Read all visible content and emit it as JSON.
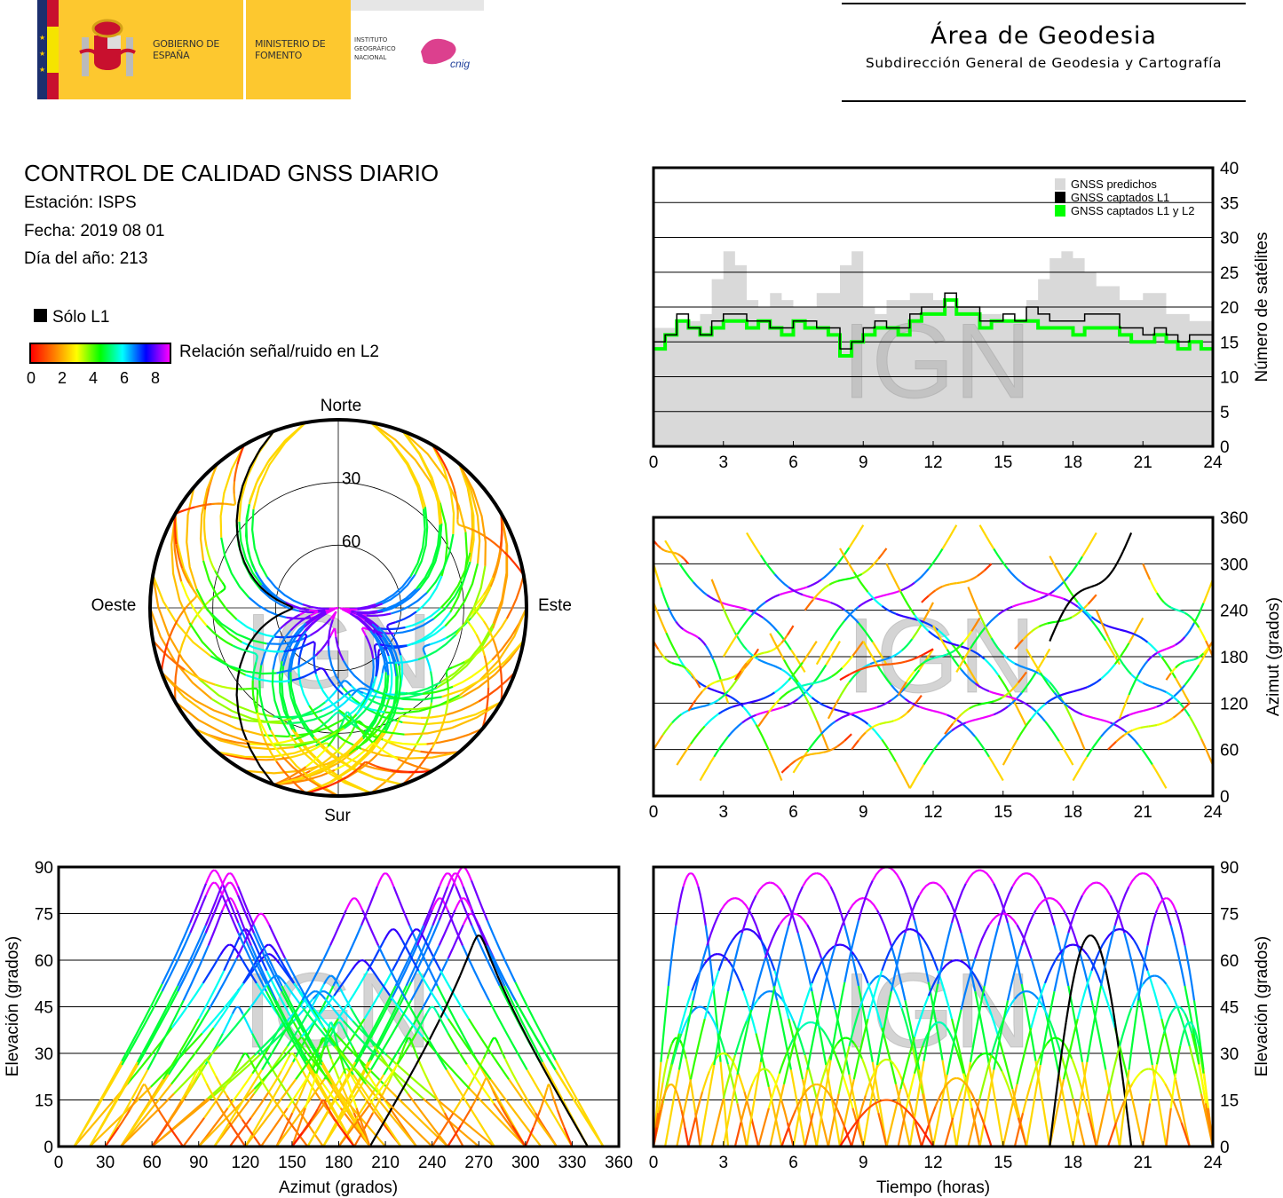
{
  "header": {
    "logo": {
      "gobierno": "GOBIERNO DE ESPAÑA",
      "ministerio": "MINISTERIO DE FOMENTO",
      "instituto": "INSTITUTO GEOGRÁFICO NACIONAL",
      "cnig": "cnig"
    },
    "area_title": "Área de Geodesia",
    "area_subtitle": "Subdirección General de Geodesia y Cartografía"
  },
  "info": {
    "title": "CONTROL DE CALIDAD GNSS DIARIO",
    "station": "Estación: ISPS",
    "date": "Fecha: 2019 08 01",
    "doy": "Día del año: 213"
  },
  "legend": {
    "solo_l1": "Sólo L1",
    "colorbar_label": "Relación señal/ruido en L2",
    "colorbar_ticks": [
      "0",
      "2",
      "4",
      "6",
      "8"
    ],
    "colors": {
      "solo_l1": "#000000",
      "predicted": "#d9d9d9",
      "l1": "#000000",
      "l1l2": "#00ff00"
    }
  },
  "watermark": "IGN",
  "chart_data": [
    {
      "id": "satellite-count",
      "type": "line",
      "title": "",
      "xlabel": "",
      "ylabel": "Número de satélites",
      "xlim": [
        0,
        24
      ],
      "ylim": [
        0,
        40
      ],
      "xticks": [
        "0",
        "3",
        "6",
        "9",
        "12",
        "15",
        "18",
        "21",
        "24"
      ],
      "yticks": [
        "0",
        "5",
        "10",
        "15",
        "20",
        "25",
        "30",
        "35",
        "40"
      ],
      "grid": true,
      "legend_position": "top-right",
      "x_step_hours": 0.5,
      "series": [
        {
          "name": "GNSS predichos",
          "style": "area",
          "values": [
            17,
            17,
            18,
            18,
            19,
            24,
            28,
            26,
            21,
            20,
            22,
            21,
            20,
            20,
            22,
            22,
            26,
            28,
            20,
            19,
            21,
            21,
            22,
            22,
            21,
            20,
            20,
            20,
            19,
            19,
            18,
            18,
            21,
            24,
            27,
            28,
            27,
            25,
            23,
            23,
            21,
            21,
            22,
            22,
            19,
            19,
            18,
            18
          ]
        },
        {
          "name": "GNSS captados L1",
          "style": "step",
          "values": [
            15,
            16,
            19,
            17,
            16,
            18,
            19,
            19,
            18,
            18,
            17,
            17,
            18,
            18,
            17,
            17,
            14,
            15,
            17,
            18,
            17,
            17,
            19,
            20,
            20,
            22,
            20,
            20,
            18,
            18,
            19,
            18,
            20,
            19,
            18,
            18,
            18,
            19,
            19,
            19,
            17,
            17,
            16,
            17,
            16,
            15,
            16,
            16
          ]
        },
        {
          "name": "GNSS captados L1 y L2",
          "style": "step",
          "values": [
            14,
            16,
            18,
            17,
            16,
            17,
            18,
            18,
            17,
            18,
            17,
            16,
            18,
            17,
            17,
            16,
            13,
            15,
            16,
            17,
            17,
            16,
            18,
            19,
            19,
            21,
            19,
            19,
            17,
            18,
            18,
            18,
            18,
            17,
            17,
            17,
            16,
            17,
            17,
            17,
            16,
            15,
            15,
            16,
            15,
            14,
            15,
            14
          ]
        }
      ]
    },
    {
      "id": "azimuth-vs-time",
      "type": "scatter",
      "xlabel": "",
      "ylabel": "Azimut (grados)",
      "xlim": [
        0,
        24
      ],
      "ylim": [
        0,
        360
      ],
      "xticks": [
        "0",
        "3",
        "6",
        "9",
        "12",
        "15",
        "18",
        "21",
        "24"
      ],
      "yticks": [
        "0",
        "60",
        "120",
        "180",
        "240",
        "300",
        "360"
      ],
      "grid": true
    },
    {
      "id": "elevation-vs-azimuth",
      "type": "scatter",
      "xlabel": "Azimut (grados)",
      "ylabel": "Elevación (grados)",
      "xlim": [
        0,
        360
      ],
      "ylim": [
        0,
        90
      ],
      "xticks": [
        "0",
        "30",
        "60",
        "90",
        "120",
        "150",
        "180",
        "210",
        "240",
        "270",
        "300",
        "330",
        "360"
      ],
      "yticks": [
        "0",
        "15",
        "30",
        "45",
        "60",
        "75",
        "90"
      ],
      "grid": true
    },
    {
      "id": "elevation-vs-time",
      "type": "scatter",
      "xlabel": "Tiempo (horas)",
      "ylabel": "Elevación (grados)",
      "xlim": [
        0,
        24
      ],
      "ylim": [
        0,
        90
      ],
      "xticks": [
        "0",
        "3",
        "6",
        "9",
        "12",
        "15",
        "18",
        "21",
        "24"
      ],
      "yticks": [
        "0",
        "15",
        "30",
        "45",
        "60",
        "75",
        "90"
      ],
      "grid": true
    },
    {
      "id": "skyplot",
      "type": "scatter",
      "directions": {
        "north": "Norte",
        "south": "Sur",
        "west": "Oeste",
        "east": "Este"
      },
      "rings": [
        "30",
        "60"
      ]
    }
  ],
  "tracks": {
    "fields": [
      "rise_h",
      "set_h",
      "max_elev_deg",
      "az_rise_deg",
      "az_set_deg",
      "snr_l2_max (-1 = solo L1)"
    ],
    "passes": [
      [
        0,
        3.2,
        88,
        300,
        120,
        8
      ],
      [
        0,
        5.5,
        62,
        250,
        20,
        7
      ],
      [
        0,
        2,
        35,
        200,
        140,
        4
      ],
      [
        0,
        4,
        45,
        60,
        170,
        6
      ],
      [
        0.5,
        6.5,
        80,
        330,
        160,
        8
      ],
      [
        1,
        7,
        70,
        40,
        200,
        7
      ],
      [
        1.5,
        4.5,
        30,
        110,
        190,
        3
      ],
      [
        2,
        8,
        85,
        20,
        200,
        8
      ],
      [
        2.5,
        7.5,
        50,
        280,
        60,
        6
      ],
      [
        3,
        9,
        75,
        180,
        350,
        8
      ],
      [
        3.5,
        6,
        25,
        150,
        220,
        3
      ],
      [
        4,
        10,
        88,
        340,
        170,
        8
      ],
      [
        4.5,
        9,
        40,
        90,
        200,
        5
      ],
      [
        5,
        11,
        65,
        210,
        10,
        7
      ],
      [
        6,
        12,
        80,
        30,
        190,
        8
      ],
      [
        6.5,
        10,
        35,
        240,
        320,
        4
      ],
      [
        7,
        13,
        90,
        170,
        350,
        8
      ],
      [
        7.5,
        12,
        55,
        100,
        250,
        6
      ],
      [
        8,
        14,
        70,
        320,
        140,
        7
      ],
      [
        8.5,
        11.5,
        28,
        60,
        130,
        3
      ],
      [
        9,
        15,
        85,
        200,
        20,
        8
      ],
      [
        10,
        16,
        60,
        300,
        90,
        7
      ],
      [
        10.5,
        14,
        40,
        130,
        230,
        5
      ],
      [
        11,
        17,
        89,
        10,
        190,
        8
      ],
      [
        12,
        18,
        75,
        220,
        40,
        8
      ],
      [
        12.5,
        16,
        30,
        80,
        160,
        4
      ],
      [
        13,
        19,
        88,
        160,
        340,
        8
      ],
      [
        13.5,
        18.5,
        50,
        270,
        60,
        6
      ],
      [
        14,
        20,
        80,
        350,
        170,
        8
      ],
      [
        15,
        21,
        65,
        40,
        230,
        7
      ],
      [
        15.5,
        19,
        35,
        190,
        260,
        4
      ],
      [
        16,
        22,
        85,
        190,
        10,
        8
      ],
      [
        17,
        23,
        70,
        310,
        120,
        7
      ],
      [
        17,
        20.5,
        68,
        200,
        340,
        -1
      ],
      [
        18,
        24,
        88,
        20,
        200,
        8
      ],
      [
        19,
        24,
        55,
        240,
        40,
        6
      ],
      [
        20,
        24,
        80,
        100,
        280,
        8
      ],
      [
        21,
        24,
        45,
        300,
        180,
        5
      ],
      [
        22,
        24,
        40,
        150,
        200,
        5
      ],
      [
        0,
        1.5,
        20,
        330,
        300,
        2
      ],
      [
        5.5,
        8.5,
        20,
        30,
        80,
        2
      ],
      [
        11.5,
        14.5,
        22,
        250,
        300,
        2
      ],
      [
        19.5,
        23,
        25,
        60,
        120,
        3
      ],
      [
        8,
        12,
        15,
        150,
        190,
        1
      ]
    ]
  }
}
